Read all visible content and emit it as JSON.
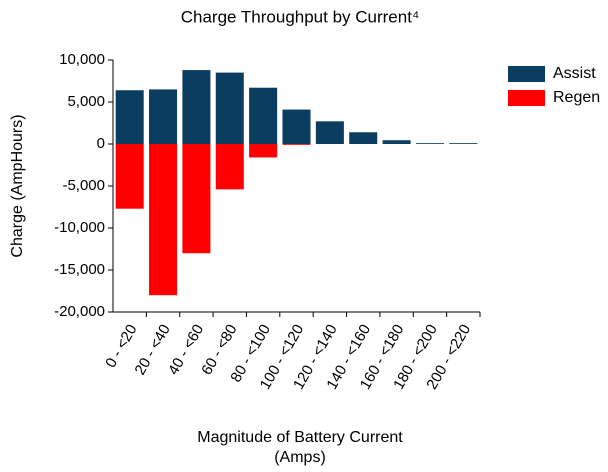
{
  "chart_data": {
    "type": "bar",
    "title": "Charge Throughput by Current⁴",
    "y_label": "Charge (AmpHours)",
    "x_label": [
      "Magnitude of Battery Current",
      "(Amps)"
    ],
    "categories": [
      "0 - <20",
      "20 - <40",
      "40 - <60",
      "60 - <80",
      "80 - <100",
      "100 - <120",
      "120 - <140",
      "140 - <160",
      "160 - <180",
      "180 - <200",
      "200 - <220"
    ],
    "series": [
      {
        "name": "Assist",
        "color": "#0b3d60",
        "values": [
          6400,
          6500,
          8800,
          8500,
          6700,
          4100,
          2700,
          1400,
          450,
          100,
          100
        ]
      },
      {
        "name": "Regen",
        "color": "#ff0000",
        "values": [
          -7700,
          -18000,
          -13000,
          -5400,
          -1600,
          -100,
          0,
          0,
          0,
          0,
          0
        ]
      }
    ],
    "ylim": [
      -20000,
      10000
    ],
    "yticks": [
      {
        "value": -20000,
        "label": "-20,000"
      },
      {
        "value": -15000,
        "label": "-15,000"
      },
      {
        "value": -10000,
        "label": "-10,000"
      },
      {
        "value": -5000,
        "label": "-5,000"
      },
      0,
      {
        "value": 5000,
        "label": "5,000"
      },
      {
        "value": 10000,
        "label": "10,000"
      }
    ],
    "legend": "right"
  }
}
